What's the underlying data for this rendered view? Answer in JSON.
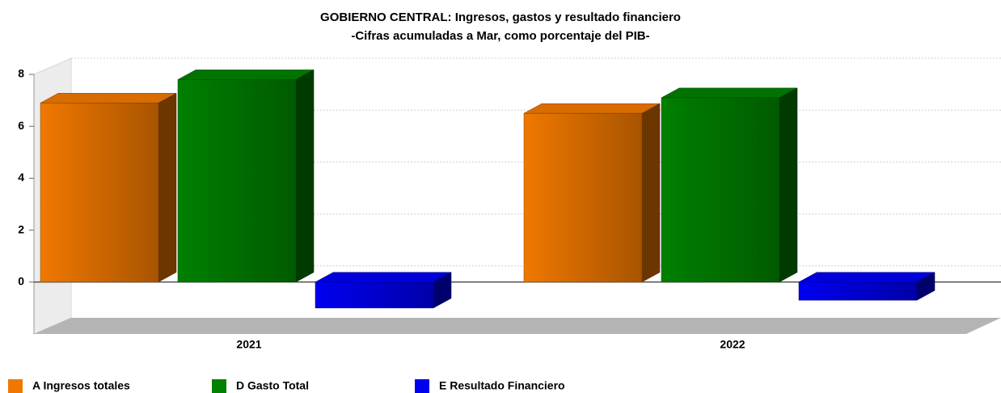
{
  "chart_data": {
    "type": "bar3d",
    "title": "GOBIERNO CENTRAL: Ingresos, gastos y resultado financiero",
    "subtitle": "-Cifras acumuladas a Mar, como porcentaje del PIB-",
    "categories": [
      "2021",
      "2022"
    ],
    "series": [
      {
        "name": "A Ingresos totales",
        "color": "#f07800",
        "values": [
          6.9,
          6.5
        ]
      },
      {
        "name": "D Gasto Total",
        "color": "#008000",
        "values": [
          7.8,
          7.1
        ]
      },
      {
        "name": "E Resultado Financiero",
        "color": "#0000f0",
        "values": [
          -1.0,
          -0.7
        ]
      }
    ],
    "ylim": [
      -2,
      8
    ],
    "yticks": [
      0,
      2,
      4,
      6,
      8
    ],
    "grid": true
  }
}
